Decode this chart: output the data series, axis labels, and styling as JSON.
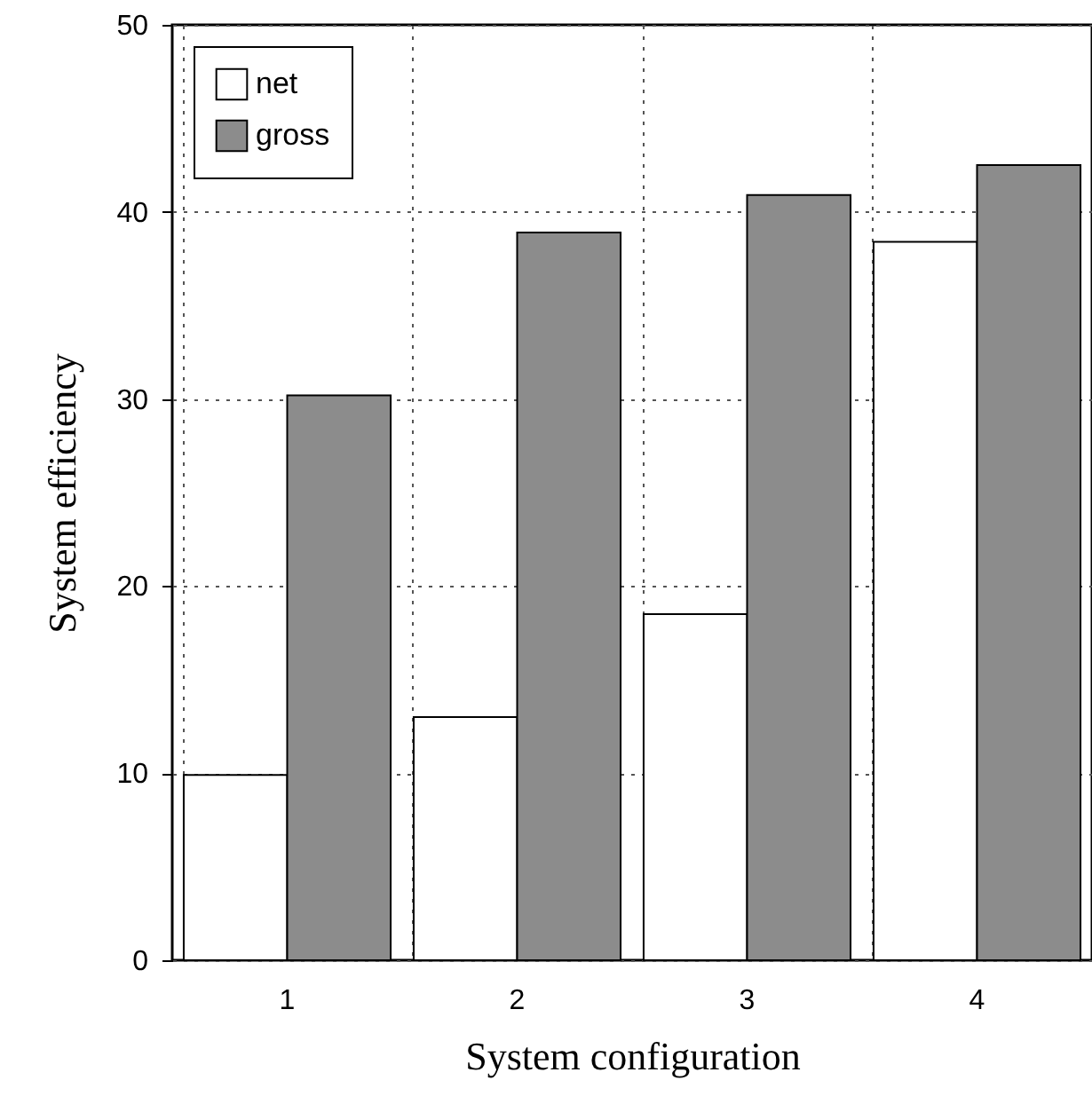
{
  "chart_data": {
    "type": "bar",
    "xlabel": "System configuration",
    "ylabel": "System efficiency",
    "categories": [
      "1",
      "2",
      "3",
      "4"
    ],
    "series": [
      {
        "name": "net",
        "color": "#ffffff",
        "values": [
          9.9,
          13.0,
          18.5,
          38.4
        ]
      },
      {
        "name": "gross",
        "color": "#8c8c8c",
        "values": [
          30.2,
          38.9,
          40.9,
          42.5
        ]
      }
    ],
    "ylim": [
      0,
      50
    ],
    "yticks": [
      0,
      10,
      20,
      30,
      40,
      50
    ],
    "grid": true,
    "legend": "top left"
  }
}
